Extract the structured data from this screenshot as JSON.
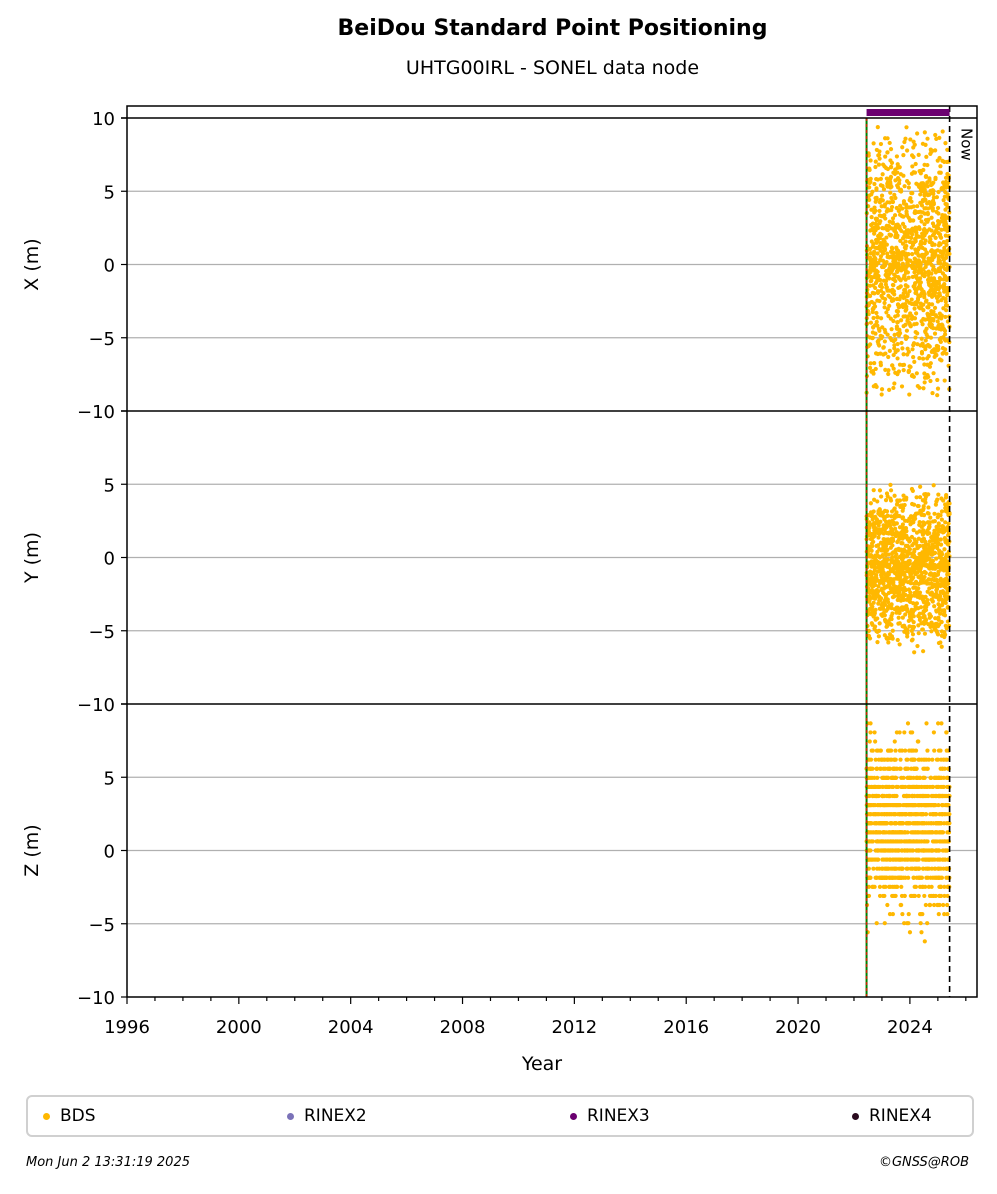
{
  "chart_data": {
    "type": "scatter",
    "title": "BeiDou Standard Point Positioning",
    "subtitle": "UHTG00IRL - SONEL data node",
    "xlabel": "Year",
    "xlim": [
      1996,
      2026.4
    ],
    "x_ticks": [
      "1996",
      "2000",
      "2004",
      "2008",
      "2012",
      "2016",
      "2020",
      "2024"
    ],
    "panels": [
      {
        "ylabel": "X (m)",
        "ylim": [
          -10,
          10
        ],
        "y_ticks": [
          "10",
          "5",
          "0",
          "−5",
          "−10"
        ]
      },
      {
        "ylabel": "Y (m)",
        "ylim": [
          -10,
          10
        ],
        "y_ticks": [
          "5",
          "0",
          "−5",
          "−10"
        ]
      },
      {
        "ylabel": "Z (m)",
        "ylim": [
          -10,
          10
        ],
        "y_ticks": [
          "5",
          "0",
          "−5",
          "−10"
        ]
      }
    ],
    "series": [
      {
        "name": "BDS",
        "color": "#FFB800",
        "x_range": [
          2022.45,
          2025.42
        ],
        "panel_ranges": {
          "X": [
            -9.5,
            9.8
          ],
          "Y": [
            -6.6,
            5.2
          ],
          "Z": [
            -6.6,
            10
          ]
        }
      },
      {
        "name": "RINEX2",
        "color": "#7B72B8"
      },
      {
        "name": "RINEX3",
        "color": "#6B0070",
        "bar_x_range": [
          2022.45,
          2025.42
        ]
      },
      {
        "name": "RINEX4",
        "color": "#2A0A1E"
      }
    ],
    "vertical_lines": [
      {
        "x": 2022.45,
        "colors": [
          "#008000",
          "#cc2200"
        ]
      },
      {
        "x": 2025.42,
        "label": "Now",
        "style": "dashed"
      }
    ],
    "grid": "y",
    "legend_position": "bottom"
  },
  "footer": {
    "date": "Mon Jun  2 13:31:19 2025",
    "copyright": "©GNSS@ROB"
  }
}
